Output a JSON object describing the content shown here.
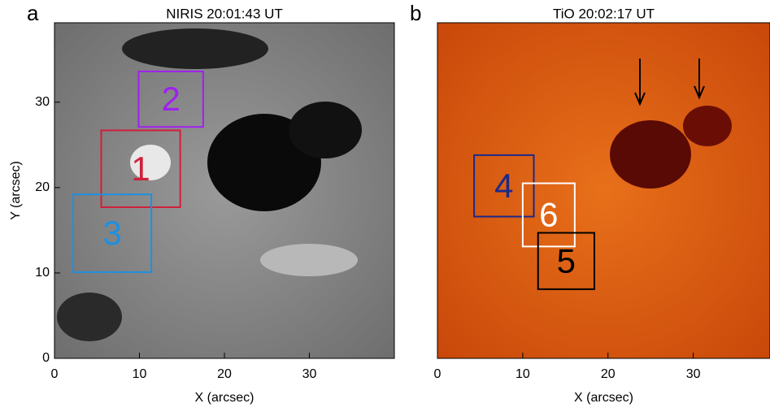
{
  "panels": [
    {
      "label": "a",
      "title": "NIRIS 20:01:43 UT",
      "xlabel": "X (arcsec)",
      "ylabel": "Y (arcsec)",
      "xlim": [
        0,
        40
      ],
      "ylim": [
        0,
        39.3
      ],
      "xticks": [
        0,
        10,
        20,
        30
      ],
      "yticks": [
        0,
        10,
        20,
        30
      ],
      "boxes": [
        {
          "label": "2",
          "color": "#a020f0",
          "x": [
            9.9,
            17.5
          ],
          "y": [
            27.1,
            33.6
          ]
        },
        {
          "label": "1",
          "color": "#d0203a",
          "x": [
            5.5,
            14.8
          ],
          "y": [
            17.7,
            26.7
          ]
        },
        {
          "label": "3",
          "color": "#1e90e0",
          "x": [
            2.2,
            11.4
          ],
          "y": [
            10.1,
            19.2
          ]
        }
      ]
    },
    {
      "label": "b",
      "title": "TiO 20:02:17 UT",
      "xlabel": "X (arcsec)",
      "xlim": [
        0,
        39
      ],
      "ylim": [
        0,
        39.3
      ],
      "xticks": [
        0,
        10,
        20,
        30
      ],
      "boxes": [
        {
          "label": "4",
          "color": "#1a2a8a",
          "x": [
            4.3,
            11.3
          ],
          "y": [
            16.6,
            23.8
          ]
        },
        {
          "label": "6",
          "color": "#ffffff",
          "x": [
            10.0,
            16.1
          ],
          "y": [
            13.1,
            20.5
          ]
        },
        {
          "label": "5",
          "color": "#000000",
          "x": [
            11.8,
            18.4
          ],
          "y": [
            8.1,
            14.7
          ]
        }
      ]
    }
  ]
}
